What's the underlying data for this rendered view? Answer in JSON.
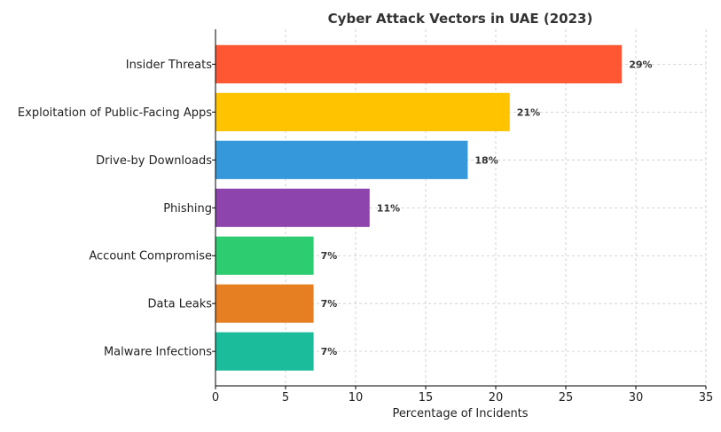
{
  "chart_data": {
    "type": "bar",
    "orientation": "horizontal",
    "title": "Cyber Attack Vectors in UAE (2023)",
    "xlabel": "Percentage of Incidents",
    "ylabel": "",
    "xlim": [
      0,
      35
    ],
    "xticks": [
      0,
      5,
      10,
      15,
      20,
      25,
      30,
      35
    ],
    "grid": true,
    "legend": "none",
    "categories": [
      "Insider Threats",
      "Exploitation of Public-Facing Apps",
      "Drive-by Downloads",
      "Phishing",
      "Account Compromise",
      "Data Leaks",
      "Malware Infections"
    ],
    "values": [
      29,
      21,
      18,
      11,
      7,
      7,
      7
    ],
    "data_labels": [
      "29%",
      "21%",
      "18%",
      "11%",
      "7%",
      "7%",
      "7%"
    ],
    "colors": [
      "#FF5733",
      "#FFC300",
      "#3498DB",
      "#8E44AD",
      "#2ECC71",
      "#E67E22",
      "#1ABC9C"
    ]
  }
}
